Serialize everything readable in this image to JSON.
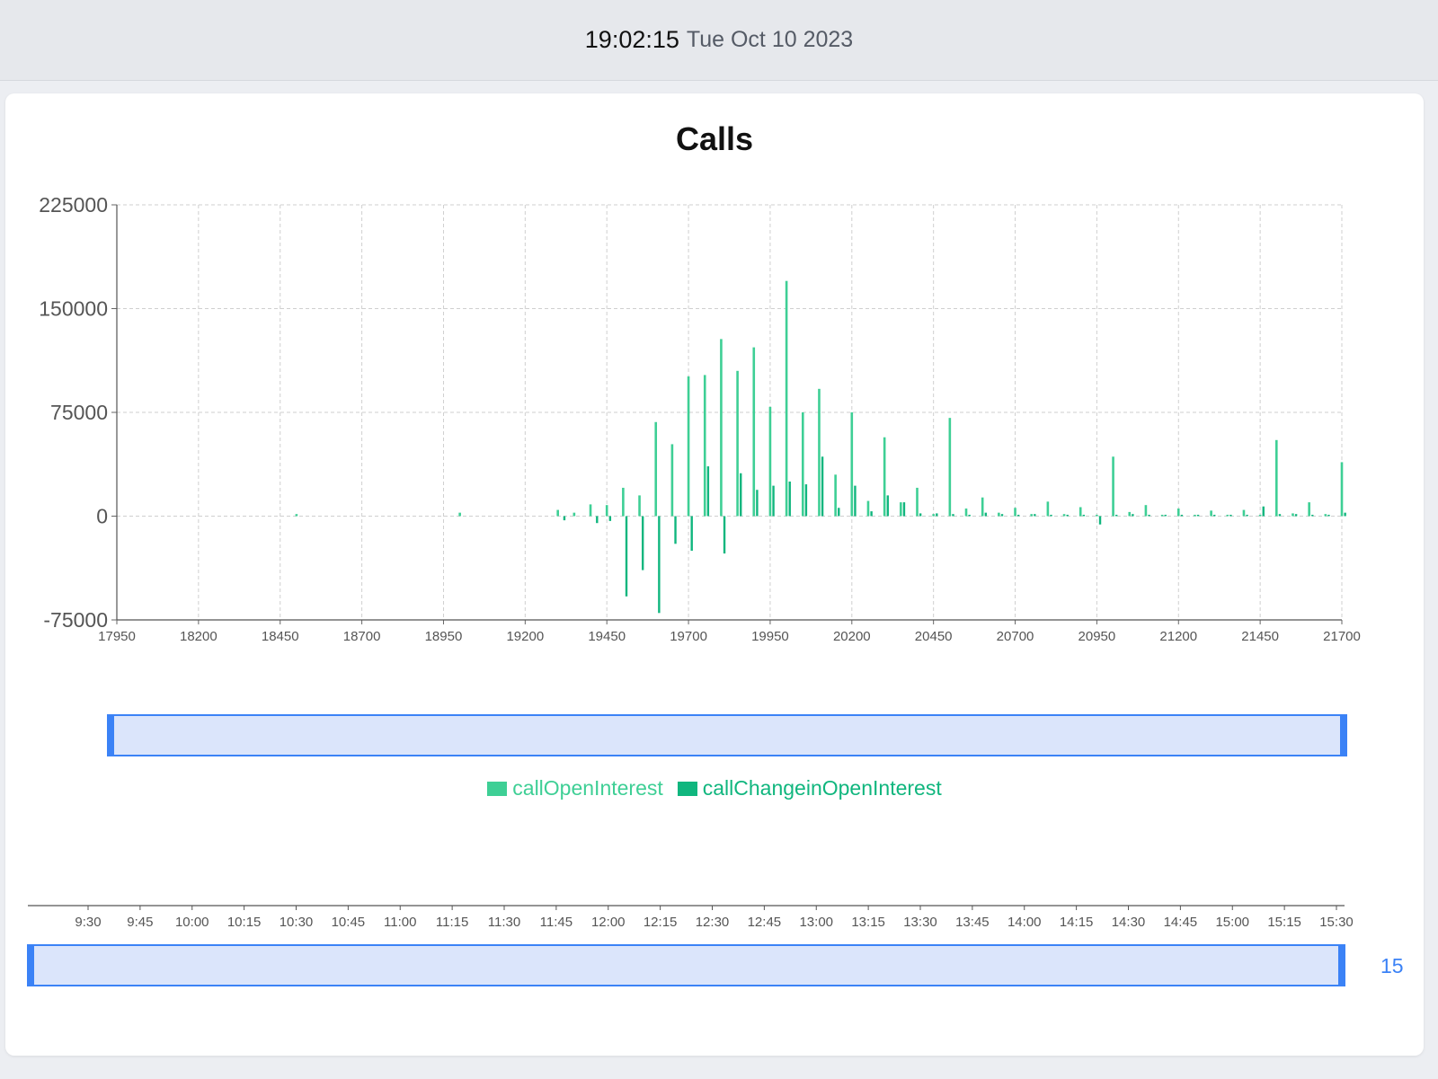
{
  "header": {
    "time": "19:02:15",
    "date": "Tue Oct 10 2023"
  },
  "chart_data": {
    "type": "bar",
    "title": "Calls",
    "xlabel": "",
    "ylabel": "",
    "ylim": [
      -75000,
      225000
    ],
    "yticks": [
      "-75000",
      "0",
      "75000",
      "150000",
      "225000"
    ],
    "xrange": [
      17950,
      21700
    ],
    "xticks": [
      "17950",
      "18200",
      "18450",
      "18700",
      "18950",
      "19200",
      "19450",
      "19700",
      "19950",
      "20200",
      "20450",
      "20700",
      "20950",
      "21200",
      "21450",
      "21700"
    ],
    "grid": true,
    "legend_position": "bottom",
    "colors": {
      "callOpenInterest": "#3ecf95",
      "callChangeinOpenInterest": "#10b67e"
    },
    "series": [
      {
        "name": "callOpenInterest",
        "x": [
          18500,
          19000,
          19300,
          19350,
          19400,
          19450,
          19500,
          19550,
          19600,
          19650,
          19700,
          19750,
          19800,
          19850,
          19900,
          19950,
          20000,
          20050,
          20100,
          20150,
          20200,
          20250,
          20300,
          20350,
          20400,
          20450,
          20500,
          20550,
          20600,
          20650,
          20700,
          20750,
          20800,
          20850,
          20900,
          20950,
          21000,
          21050,
          21100,
          21150,
          21200,
          21250,
          21300,
          21350,
          21400,
          21450,
          21500,
          21550,
          21600,
          21650,
          21700
        ],
        "values": [
          1500,
          2500,
          4500,
          2500,
          8500,
          8000,
          20500,
          15000,
          68000,
          52000,
          101000,
          102000,
          128000,
          105000,
          122000,
          79000,
          170000,
          75000,
          92000,
          30000,
          75000,
          11000,
          57000,
          10000,
          20500,
          1500,
          71000,
          5500,
          13500,
          2500,
          6000,
          1500,
          10500,
          1500,
          6500,
          1000,
          43000,
          3000,
          8000,
          1000,
          5500,
          1000,
          4000,
          1000,
          4500,
          1000,
          55000,
          2000,
          10000,
          1500,
          39000
        ]
      },
      {
        "name": "callChangeinOpenInterest",
        "x": [
          19320,
          19420,
          19460,
          19510,
          19560,
          19610,
          19660,
          19710,
          19760,
          19810,
          19860,
          19910,
          19960,
          20010,
          20060,
          20110,
          20160,
          20210,
          20260,
          20310,
          20360,
          20410,
          20460,
          20510,
          20560,
          20610,
          20660,
          20710,
          20760,
          20810,
          20860,
          20910,
          20960,
          21010,
          21060,
          21110,
          21160,
          21210,
          21260,
          21310,
          21360,
          21410,
          21460,
          21510,
          21560,
          21610,
          21660,
          21710
        ],
        "values": [
          -3000,
          -5000,
          -3500,
          -58000,
          -39000,
          -70000,
          -20000,
          -25000,
          36000,
          -27000,
          31000,
          19000,
          22000,
          25000,
          23000,
          43000,
          6000,
          22000,
          3500,
          15000,
          10000,
          2000,
          2000,
          1500,
          1000,
          2500,
          1500,
          1000,
          1500,
          1000,
          1000,
          1000,
          -6000,
          1000,
          1500,
          1000,
          1000,
          1000,
          1000,
          1000,
          1000,
          1000,
          7000,
          1500,
          1500,
          1000,
          1000,
          2500
        ]
      }
    ]
  },
  "time_axis": {
    "ticks": [
      "9:30",
      "9:45",
      "10:00",
      "10:15",
      "10:30",
      "10:45",
      "11:00",
      "11:15",
      "11:30",
      "11:45",
      "12:00",
      "12:15",
      "12:30",
      "12:45",
      "13:00",
      "13:15",
      "13:30",
      "13:45",
      "14:00",
      "14:15",
      "14:30",
      "14:45",
      "15:00",
      "15:15",
      "15:30"
    ]
  },
  "time_slider": {
    "end_label": "15"
  },
  "colors": {
    "slider_fill": "#dbe5fb",
    "slider_border": "#3b82f6"
  }
}
